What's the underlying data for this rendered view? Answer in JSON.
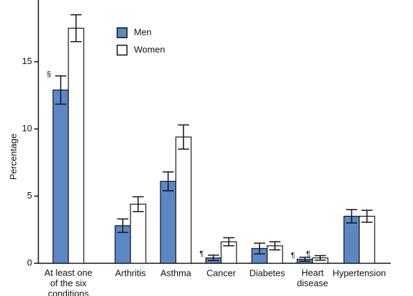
{
  "chart_data": {
    "type": "bar",
    "y_label": "Percentage",
    "categories": [
      "At least one of the six conditions",
      "Arthritis",
      "Asthma",
      "Cancer",
      "Diabetes",
      "Heart disease",
      "Hypertension"
    ],
    "series": [
      {
        "name": "Men",
        "color": "#5b87c5",
        "values": [
          12.9,
          2.8,
          6.1,
          0.4,
          1.1,
          0.3,
          3.5
        ],
        "errors": [
          1.05,
          0.5,
          0.7,
          0.2,
          0.4,
          0.15,
          0.5
        ],
        "notes": [
          "§",
          null,
          null,
          "¶",
          null,
          "¶",
          null
        ]
      },
      {
        "name": "Women",
        "color": "#ffffff",
        "values": [
          17.5,
          4.4,
          9.4,
          1.6,
          1.3,
          0.4,
          3.5
        ],
        "errors": [
          1.0,
          0.55,
          0.9,
          0.3,
          0.3,
          0.17,
          0.45
        ],
        "notes": [
          null,
          null,
          null,
          null,
          null,
          "¶",
          null
        ]
      }
    ],
    "ylim": [
      0,
      19.6
    ],
    "yticks": [
      0,
      5,
      10,
      15
    ],
    "grid": false
  }
}
